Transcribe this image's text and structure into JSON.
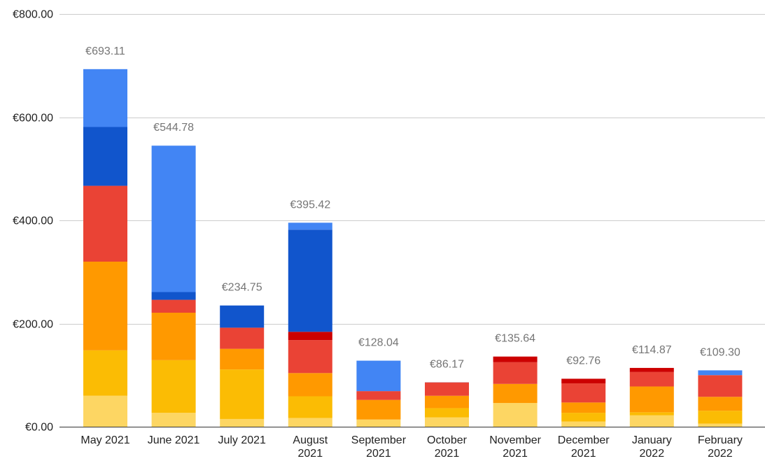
{
  "chart_data": {
    "type": "bar",
    "stacked": true,
    "title": "",
    "xlabel": "",
    "ylabel": "",
    "ylim": [
      0,
      800
    ],
    "yticks": [
      "€0.00",
      "€200.00",
      "€400.00",
      "€600.00",
      "€800.00"
    ],
    "ytick_values": [
      0,
      200,
      400,
      600,
      800
    ],
    "grid": true,
    "legend": "none",
    "categories": [
      [
        "May 2021"
      ],
      [
        "June 2021"
      ],
      [
        "July 2021"
      ],
      [
        "August",
        "2021"
      ],
      [
        "September",
        "2021"
      ],
      [
        "October",
        "2021"
      ],
      [
        "November",
        "2021"
      ],
      [
        "December",
        "2021"
      ],
      [
        "January",
        "2022"
      ],
      [
        "February",
        "2022"
      ]
    ],
    "totals": [
      "€693.11",
      "€544.78",
      "€234.75",
      "€395.42",
      "€128.04",
      "€86.17",
      "€135.64",
      "€92.76",
      "€114.87",
      "€109.30"
    ],
    "series": [
      {
        "color": "#fdd663",
        "values": [
          60,
          27,
          15,
          17,
          14,
          18,
          46,
          10,
          22,
          6
        ]
      },
      {
        "color": "#fbbc04",
        "values": [
          88,
          102,
          96,
          42,
          0,
          18,
          0,
          17,
          6,
          25
        ]
      },
      {
        "color": "#ff9900",
        "values": [
          172,
          92,
          40,
          45,
          38,
          24,
          37,
          20,
          50,
          27
        ]
      },
      {
        "color": "#ea4335",
        "values": [
          147,
          25,
          41,
          64,
          17,
          26,
          42,
          37,
          28,
          42
        ]
      },
      {
        "color": "#cc0000",
        "values": [
          0,
          0,
          0,
          16,
          0,
          0,
          11,
          9,
          8,
          0
        ]
      },
      {
        "color": "#1155cc",
        "values": [
          114,
          15,
          43,
          198,
          0,
          0,
          0,
          0,
          0,
          0
        ]
      },
      {
        "color": "#4285f4",
        "values": [
          112.11,
          283.78,
          0,
          13.42,
          59.04,
          0.17,
          0,
          0,
          0,
          9.3
        ]
      }
    ]
  }
}
